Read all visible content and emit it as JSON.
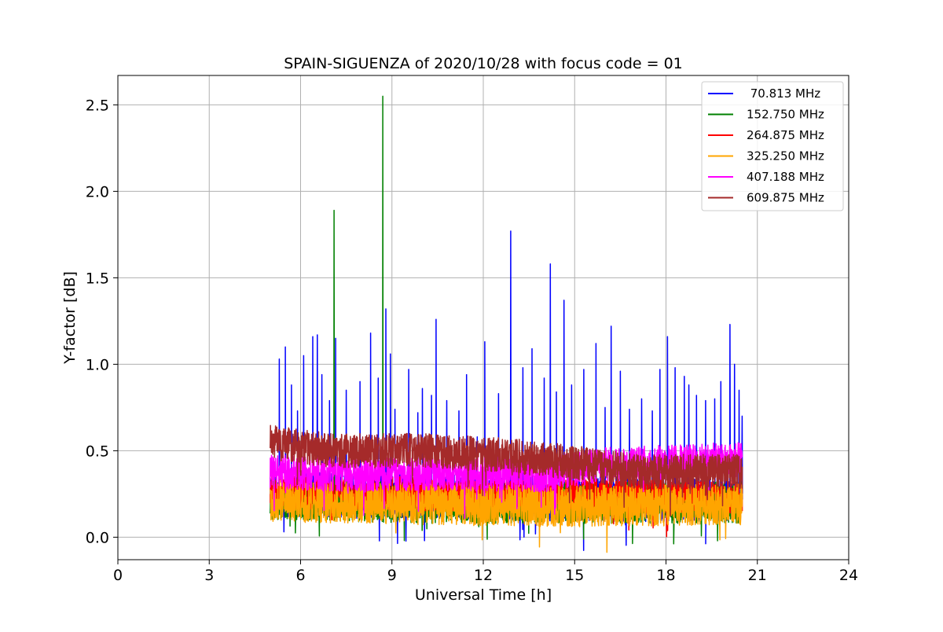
{
  "chart_data": {
    "type": "line",
    "title": "SPAIN-SIGUENZA of 2020/10/28 with focus code = 01",
    "xlabel": "Universal Time [h]",
    "ylabel": "Y-factor [dB]",
    "xlim": [
      0,
      24
    ],
    "ylim": [
      -0.13,
      2.67
    ],
    "xticks": [
      0,
      3,
      6,
      9,
      12,
      15,
      18,
      21,
      24
    ],
    "xtick_labels": [
      "0",
      "3",
      "6",
      "9",
      "12",
      "15",
      "18",
      "21",
      "24"
    ],
    "yticks": [
      0.0,
      0.5,
      1.0,
      1.5,
      2.0,
      2.5
    ],
    "ytick_labels": [
      "0.0",
      "0.5",
      "1.0",
      "1.5",
      "2.0",
      "2.5"
    ],
    "grid": true,
    "legend_position": "top-right",
    "time_range": [
      5.0,
      20.5
    ],
    "series": [
      {
        "name": " 70.813 MHz",
        "color": "#0000ff",
        "baseline": [
          [
            5.0,
            0.25
          ],
          [
            10.0,
            0.24
          ],
          [
            15.0,
            0.22
          ],
          [
            20.5,
            0.22
          ]
        ],
        "band": 0.13,
        "spikes": [
          [
            5.3,
            1.03
          ],
          [
            5.5,
            1.1
          ],
          [
            5.7,
            0.88
          ],
          [
            5.9,
            0.73
          ],
          [
            6.1,
            1.05
          ],
          [
            6.4,
            1.16
          ],
          [
            6.55,
            1.17
          ],
          [
            6.7,
            0.94
          ],
          [
            6.95,
            0.79
          ],
          [
            7.15,
            1.15
          ],
          [
            7.5,
            0.85
          ],
          [
            7.95,
            0.9
          ],
          [
            8.3,
            1.18
          ],
          [
            8.55,
            0.92
          ],
          [
            8.8,
            1.32
          ],
          [
            8.95,
            1.06
          ],
          [
            9.1,
            0.74
          ],
          [
            9.55,
            0.97
          ],
          [
            9.85,
            0.72
          ],
          [
            10.0,
            0.86
          ],
          [
            10.3,
            0.82
          ],
          [
            10.45,
            1.26
          ],
          [
            10.8,
            0.79
          ],
          [
            11.2,
            0.73
          ],
          [
            11.45,
            0.94
          ],
          [
            11.8,
            0.58
          ],
          [
            12.05,
            1.13
          ],
          [
            12.5,
            0.83
          ],
          [
            12.9,
            1.77
          ],
          [
            13.3,
            0.98
          ],
          [
            13.6,
            1.09
          ],
          [
            14.0,
            0.92
          ],
          [
            14.2,
            1.58
          ],
          [
            14.4,
            0.84
          ],
          [
            14.65,
            1.37
          ],
          [
            14.9,
            0.88
          ],
          [
            15.3,
            0.97
          ],
          [
            15.7,
            1.12
          ],
          [
            16.0,
            0.75
          ],
          [
            16.2,
            1.22
          ],
          [
            16.5,
            0.96
          ],
          [
            16.8,
            0.74
          ],
          [
            17.2,
            0.8
          ],
          [
            17.55,
            0.73
          ],
          [
            17.8,
            0.97
          ],
          [
            18.05,
            1.16
          ],
          [
            18.3,
            0.98
          ],
          [
            18.6,
            0.93
          ],
          [
            18.75,
            0.88
          ],
          [
            19.0,
            0.82
          ],
          [
            19.3,
            0.79
          ],
          [
            19.6,
            0.8
          ],
          [
            19.8,
            0.9
          ],
          [
            20.1,
            1.23
          ],
          [
            20.25,
            1.0
          ],
          [
            20.4,
            0.85
          ],
          [
            20.5,
            0.7
          ]
        ]
      },
      {
        "name": "152.750 MHz",
        "color": "#008000",
        "baseline": [
          [
            5.0,
            0.22
          ],
          [
            10.0,
            0.2
          ],
          [
            15.0,
            0.2
          ],
          [
            20.5,
            0.2
          ]
        ],
        "band": 0.12,
        "spikes": [
          [
            7.1,
            1.89
          ],
          [
            8.7,
            2.55
          ]
        ]
      },
      {
        "name": "264.875 MHz",
        "color": "#ff0000",
        "baseline": [
          [
            5.0,
            0.26
          ],
          [
            10.0,
            0.25
          ],
          [
            15.0,
            0.24
          ],
          [
            20.5,
            0.24
          ]
        ],
        "band": 0.1,
        "spikes": []
      },
      {
        "name": "325.250 MHz",
        "color": "#ffa500",
        "baseline": [
          [
            5.0,
            0.21
          ],
          [
            10.0,
            0.19
          ],
          [
            15.0,
            0.18
          ],
          [
            20.5,
            0.19
          ]
        ],
        "band": 0.12,
        "spikes": []
      },
      {
        "name": "407.188 MHz",
        "color": "#ff00ff",
        "baseline": [
          [
            5.0,
            0.38
          ],
          [
            8.0,
            0.36
          ],
          [
            11.0,
            0.37
          ],
          [
            14.0,
            0.36
          ],
          [
            16.0,
            0.42
          ],
          [
            20.5,
            0.45
          ]
        ],
        "band": 0.1,
        "spikes": []
      },
      {
        "name": "609.875 MHz",
        "color": "#a52a2a",
        "baseline": [
          [
            5.0,
            0.55
          ],
          [
            7.0,
            0.5
          ],
          [
            10.0,
            0.5
          ],
          [
            13.0,
            0.47
          ],
          [
            15.0,
            0.43
          ],
          [
            17.0,
            0.38
          ],
          [
            20.5,
            0.38
          ]
        ],
        "band": 0.1,
        "spikes": []
      }
    ]
  }
}
